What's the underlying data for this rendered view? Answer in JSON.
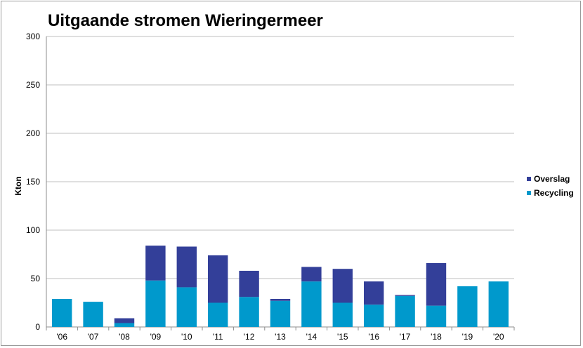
{
  "chart_data": {
    "type": "bar",
    "stacked": true,
    "title": "Uitgaande stromen Wieringermeer",
    "xlabel": "",
    "ylabel": "Kton",
    "ylim": [
      0,
      300
    ],
    "yticks": [
      "0",
      "50",
      "100",
      "150",
      "200",
      "250",
      "300"
    ],
    "grid": true,
    "legend_position": "right",
    "categories": [
      "'06",
      "'07",
      "'08",
      "'09",
      "'10",
      "'11",
      "'12",
      "'13",
      "'14",
      "'15",
      "'16",
      "'17",
      "'18",
      "'19",
      "'20"
    ],
    "series": [
      {
        "name": "Recycling",
        "color": "#0099cc",
        "values": [
          29,
          26,
          4,
          48,
          41,
          25,
          31,
          27,
          47,
          25,
          23,
          32,
          22,
          42,
          47
        ]
      },
      {
        "name": "Overslag",
        "color": "#333f99",
        "values": [
          0,
          0,
          5,
          36,
          42,
          49,
          27,
          2,
          15,
          35,
          24,
          1,
          44,
          0,
          0
        ]
      }
    ],
    "legend": [
      "Overslag",
      "Recycling"
    ]
  }
}
